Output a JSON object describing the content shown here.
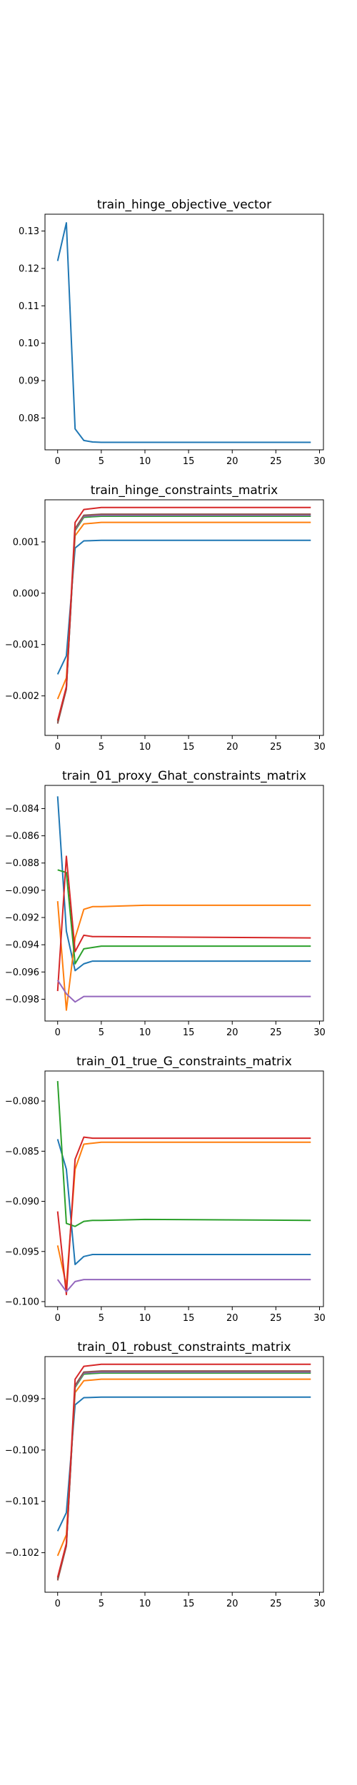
{
  "colors": {
    "C0": "#1f77b4",
    "C1": "#ff7f0e",
    "C2": "#2ca02c",
    "C3": "#d62728",
    "C4": "#9467bd",
    "C5": "#8c564b"
  },
  "chart_data": [
    {
      "type": "line",
      "title": "train_hinge_objective_vector",
      "xlabel": "",
      "ylabel": "",
      "xlim": [
        -1.45,
        30.45
      ],
      "ylim": [
        0.0715,
        0.1345
      ],
      "xticks": [
        0,
        5,
        10,
        15,
        20,
        25,
        30
      ],
      "yticks": [
        0.08,
        0.09,
        0.1,
        0.11,
        0.12,
        0.13
      ],
      "ytick_labels": [
        "0.08",
        "0.09",
        "0.10",
        "0.11",
        "0.12",
        "0.13"
      ],
      "grid": false,
      "series": [
        {
          "color": "C0",
          "x": [
            0,
            1,
            2,
            3,
            4,
            5,
            29
          ],
          "y": [
            0.122,
            0.1322,
            0.0771,
            0.074,
            0.0736,
            0.0735,
            0.0735
          ]
        }
      ]
    },
    {
      "type": "line",
      "title": "train_hinge_constraints_matrix",
      "xlabel": "",
      "ylabel": "",
      "xlim": [
        -1.45,
        30.45
      ],
      "ylim": [
        -0.00277,
        0.00182
      ],
      "xticks": [
        0,
        5,
        10,
        15,
        20,
        25,
        30
      ],
      "yticks": [
        -0.002,
        -0.001,
        0.0,
        0.001
      ],
      "ytick_labels": [
        "−0.002",
        "−0.001",
        "0.000",
        "0.001"
      ],
      "grid": false,
      "series": [
        {
          "color": "C0",
          "x": [
            0,
            1,
            2,
            3,
            5,
            29
          ],
          "y": [
            -0.00158,
            -0.00122,
            0.00088,
            0.00102,
            0.00103,
            0.00103
          ]
        },
        {
          "color": "C1",
          "x": [
            0,
            1,
            2,
            3,
            5,
            29
          ],
          "y": [
            -0.00206,
            -0.00165,
            0.00112,
            0.00135,
            0.00138,
            0.00138
          ]
        },
        {
          "color": "C2",
          "x": [
            0,
            1,
            2,
            3,
            5,
            29
          ],
          "y": [
            -0.0025,
            -0.00185,
            0.00122,
            0.00148,
            0.0015,
            0.0015
          ]
        },
        {
          "color": "C4",
          "x": [
            0,
            1,
            2,
            3,
            5,
            29
          ],
          "y": [
            -0.00252,
            -0.00186,
            0.00124,
            0.0015,
            0.00152,
            0.00152
          ]
        },
        {
          "color": "C5",
          "x": [
            0,
            1,
            2,
            3,
            5,
            29
          ],
          "y": [
            -0.00254,
            -0.00187,
            0.00126,
            0.00152,
            0.00154,
            0.00154
          ]
        },
        {
          "color": "C3",
          "x": [
            0,
            1,
            2,
            3,
            5,
            29
          ],
          "y": [
            -0.00248,
            -0.00182,
            0.00138,
            0.00163,
            0.00167,
            0.00167
          ]
        }
      ]
    },
    {
      "type": "line",
      "title": "train_01_proxy_Ghat_constraints_matrix",
      "xlabel": "",
      "ylabel": "",
      "xlim": [
        -1.45,
        30.45
      ],
      "ylim": [
        -0.0996,
        -0.0823
      ],
      "xticks": [
        0,
        5,
        10,
        15,
        20,
        25,
        30
      ],
      "yticks": [
        -0.084,
        -0.086,
        -0.088,
        -0.09,
        -0.092,
        -0.094,
        -0.096,
        -0.098
      ],
      "ytick_labels": [
        "−0.084",
        "−0.086",
        "−0.088",
        "−0.090",
        "−0.092",
        "−0.094",
        "−0.096",
        "−0.098"
      ],
      "grid": false,
      "series": [
        {
          "color": "C0",
          "x": [
            0,
            1,
            2,
            3,
            4,
            5,
            29
          ],
          "y": [
            -0.0831,
            -0.093,
            -0.0959,
            -0.0954,
            -0.0952,
            -0.0952,
            -0.0952
          ]
        },
        {
          "color": "C1",
          "x": [
            0,
            1,
            2,
            3,
            4,
            5,
            10,
            29
          ],
          "y": [
            -0.0908,
            -0.0988,
            -0.0935,
            -0.0914,
            -0.0912,
            -0.0912,
            -0.0911,
            -0.0911
          ]
        },
        {
          "color": "C2",
          "x": [
            0,
            1,
            2,
            3,
            4,
            5,
            29
          ],
          "y": [
            -0.0885,
            -0.0887,
            -0.0954,
            -0.0943,
            -0.0942,
            -0.0941,
            -0.0941
          ]
        },
        {
          "color": "C3",
          "x": [
            0,
            1,
            2,
            3,
            4,
            5,
            29
          ],
          "y": [
            -0.0974,
            -0.0875,
            -0.0945,
            -0.0933,
            -0.0934,
            -0.0934,
            -0.0935
          ]
        },
        {
          "color": "C4",
          "x": [
            0,
            1,
            2,
            3,
            4,
            5,
            29
          ],
          "y": [
            -0.0966,
            -0.0976,
            -0.0982,
            -0.0978,
            -0.0978,
            -0.0978,
            -0.0978
          ]
        }
      ]
    },
    {
      "type": "line",
      "title": "train_01_true_G_constraints_matrix",
      "xlabel": "",
      "ylabel": "",
      "xlim": [
        -1.45,
        30.45
      ],
      "ylim": [
        -0.1005,
        -0.077
      ],
      "xticks": [
        0,
        5,
        10,
        15,
        20,
        25,
        30
      ],
      "yticks": [
        -0.08,
        -0.085,
        -0.09,
        -0.095,
        -0.1
      ],
      "ytick_labels": [
        "−0.080",
        "−0.085",
        "−0.090",
        "−0.095",
        "−0.100"
      ],
      "grid": false,
      "series": [
        {
          "color": "C0",
          "x": [
            0,
            1,
            2,
            3,
            4,
            5,
            29
          ],
          "y": [
            -0.0838,
            -0.0868,
            -0.0963,
            -0.0955,
            -0.0953,
            -0.0953,
            -0.0953
          ]
        },
        {
          "color": "C1",
          "x": [
            0,
            1,
            2,
            3,
            4,
            5,
            10,
            29
          ],
          "y": [
            -0.0944,
            -0.0984,
            -0.0868,
            -0.0843,
            -0.0842,
            -0.0841,
            -0.0841,
            -0.0841
          ]
        },
        {
          "color": "C2",
          "x": [
            0,
            1,
            2,
            3,
            4,
            5,
            10,
            29
          ],
          "y": [
            -0.078,
            -0.0922,
            -0.0925,
            -0.092,
            -0.0919,
            -0.0919,
            -0.0918,
            -0.0919
          ]
        },
        {
          "color": "C3",
          "x": [
            0,
            1,
            2,
            3,
            4,
            5,
            29
          ],
          "y": [
            -0.091,
            -0.0993,
            -0.0858,
            -0.0836,
            -0.0837,
            -0.0837,
            -0.0837
          ]
        },
        {
          "color": "C4",
          "x": [
            0,
            1,
            2,
            3,
            4,
            5,
            29
          ],
          "y": [
            -0.0978,
            -0.099,
            -0.098,
            -0.0978,
            -0.0978,
            -0.0978,
            -0.0978
          ]
        }
      ]
    },
    {
      "type": "line",
      "title": "train_01_robust_constraints_matrix",
      "xlabel": "",
      "ylabel": "",
      "xlim": [
        -1.45,
        30.45
      ],
      "ylim": [
        -0.10277,
        -0.09818
      ],
      "xticks": [
        0,
        5,
        10,
        15,
        20,
        25,
        30
      ],
      "yticks": [
        -0.099,
        -0.1,
        -0.101,
        -0.102
      ],
      "ytick_labels": [
        "−0.099",
        "−0.100",
        "−0.101",
        "−0.102"
      ],
      "grid": false,
      "series": [
        {
          "color": "C0",
          "x": [
            0,
            1,
            2,
            3,
            5,
            29
          ],
          "y": [
            -0.10158,
            -0.10122,
            -0.09912,
            -0.09898,
            -0.09897,
            -0.09897
          ]
        },
        {
          "color": "C1",
          "x": [
            0,
            1,
            2,
            3,
            5,
            29
          ],
          "y": [
            -0.10206,
            -0.10165,
            -0.09888,
            -0.09865,
            -0.09862,
            -0.09862
          ]
        },
        {
          "color": "C2",
          "x": [
            0,
            1,
            2,
            3,
            5,
            29
          ],
          "y": [
            -0.1025,
            -0.10185,
            -0.09878,
            -0.09852,
            -0.0985,
            -0.0985
          ]
        },
        {
          "color": "C4",
          "x": [
            0,
            1,
            2,
            3,
            5,
            29
          ],
          "y": [
            -0.10252,
            -0.10186,
            -0.09876,
            -0.0985,
            -0.09848,
            -0.09848
          ]
        },
        {
          "color": "C5",
          "x": [
            0,
            1,
            2,
            3,
            5,
            29
          ],
          "y": [
            -0.10254,
            -0.10187,
            -0.09874,
            -0.09848,
            -0.09846,
            -0.09846
          ]
        },
        {
          "color": "C3",
          "x": [
            0,
            1,
            2,
            3,
            5,
            29
          ],
          "y": [
            -0.10248,
            -0.10182,
            -0.09862,
            -0.09837,
            -0.09833,
            -0.09833
          ]
        }
      ]
    }
  ]
}
